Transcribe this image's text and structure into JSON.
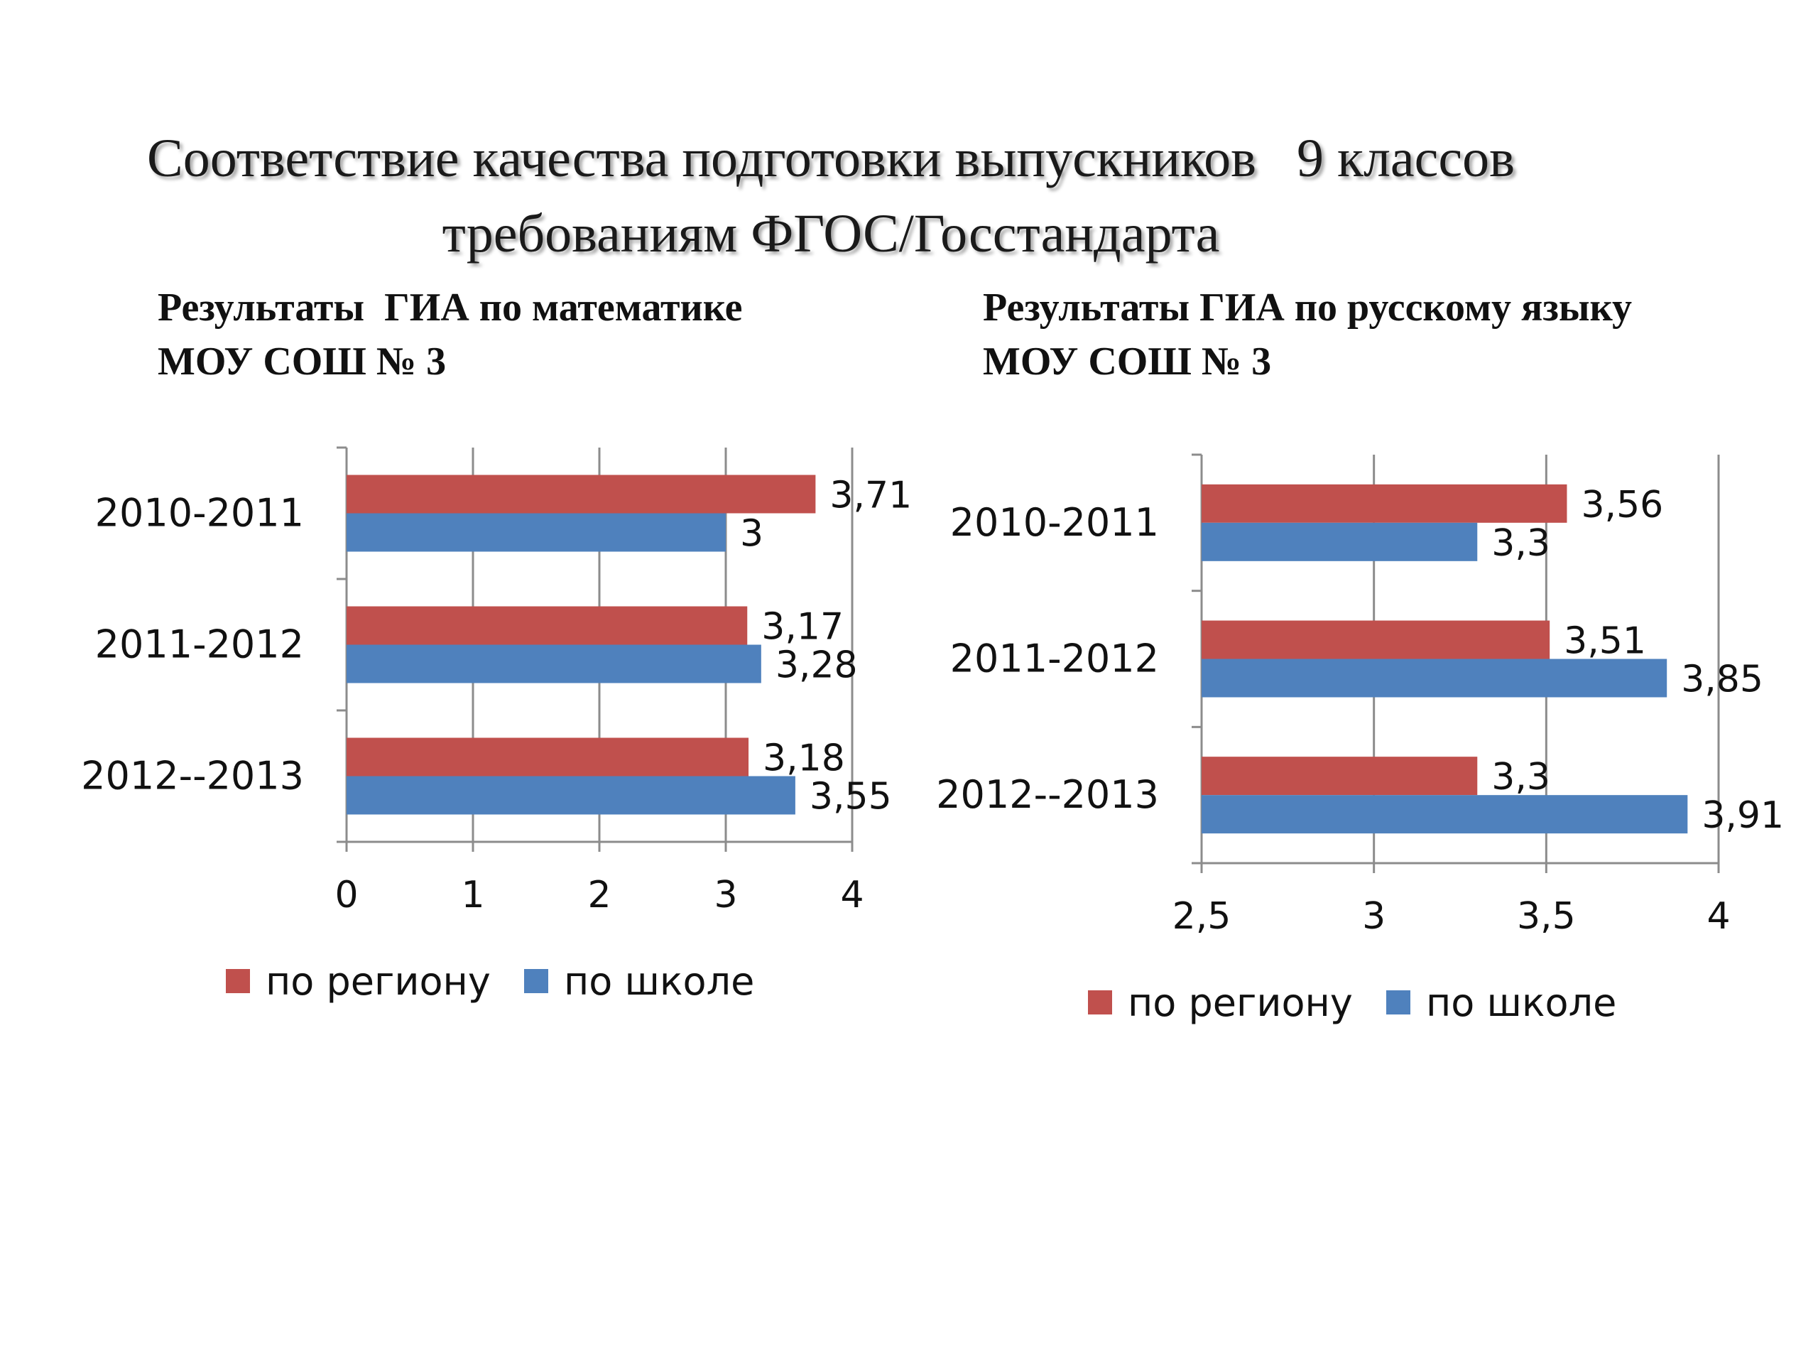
{
  "title": {
    "line1": "Соответствие качества подготовки выпускников   9 классов",
    "line2": "требованиям ФГОС/Госстандарта"
  },
  "colors": {
    "region": "#c0504d",
    "school": "#4f81bd",
    "axis": "#8c8c8c"
  },
  "chart_data": [
    {
      "type": "bar",
      "orientation": "horizontal",
      "title_lines": [
        "Результаты  ГИА по математике",
        "МОУ СОШ № 3"
      ],
      "categories": [
        "2010-2011",
        "2011-2012",
        "2012--2013"
      ],
      "series": [
        {
          "name": "по региону",
          "color": "#c0504d",
          "values": [
            3.71,
            3.17,
            3.18
          ],
          "labels": [
            "3,71",
            "3,17",
            "3,18"
          ]
        },
        {
          "name": "по  школе",
          "color": "#4f81bd",
          "values": [
            3,
            3.28,
            3.55
          ],
          "labels": [
            "3",
            "3,28",
            "3,55"
          ]
        }
      ],
      "xlim": [
        0,
        4
      ],
      "ticks": [
        0,
        1,
        2,
        3,
        4
      ],
      "tick_labels": [
        "0",
        "1",
        "2",
        "3",
        "4"
      ],
      "grid": true,
      "legend": "bottom"
    },
    {
      "type": "bar",
      "orientation": "horizontal",
      "title_lines": [
        "Результаты ГИА по русскому языку",
        "МОУ СОШ № 3"
      ],
      "categories": [
        "2010-2011",
        "2011-2012",
        "2012--2013"
      ],
      "series": [
        {
          "name": "по региону",
          "color": "#c0504d",
          "values": [
            3.56,
            3.51,
            3.3
          ],
          "labels": [
            "3,56",
            "3,51",
            "3,3"
          ]
        },
        {
          "name": "по  школе",
          "color": "#4f81bd",
          "values": [
            3.3,
            3.85,
            3.91
          ],
          "labels": [
            "3,3",
            "3,85",
            "3,91"
          ]
        }
      ],
      "xlim": [
        2.5,
        4
      ],
      "ticks": [
        2.5,
        3,
        3.5,
        4
      ],
      "tick_labels": [
        "2,5",
        "3",
        "3,5",
        "4"
      ],
      "grid": true,
      "legend": "bottom"
    }
  ]
}
